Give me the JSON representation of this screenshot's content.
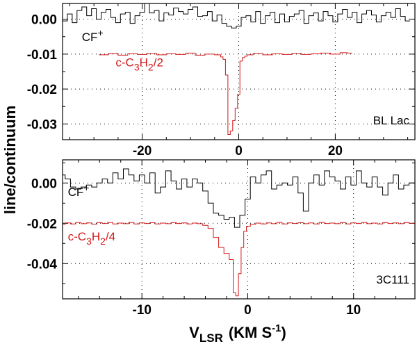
{
  "chart_data": [
    {
      "type": "line",
      "panel": "top",
      "source_label": "BL Lac",
      "xlim": [
        -36.5,
        36.5
      ],
      "ylim": [
        -0.0345,
        0.0045
      ],
      "xticks": [
        -20,
        0,
        20
      ],
      "xtick_labels": [
        "-20",
        "0",
        "20"
      ],
      "yticks": [
        0.0,
        -0.01,
        -0.02,
        -0.03
      ],
      "ytick_labels": [
        "0.00",
        "-0.01",
        "-0.02",
        "-0.03"
      ],
      "grid": true,
      "series": [
        {
          "name": "CF",
          "name_sup": "+",
          "color": "#000000",
          "points": [
            [
              -36,
              -0.0005
            ],
            [
              -35,
              0.0015
            ],
            [
              -34,
              -0.001
            ],
            [
              -33,
              0.0025
            ],
            [
              -32,
              0.0035
            ],
            [
              -31,
              0.001
            ],
            [
              -30,
              0.003
            ],
            [
              -29,
              0.0
            ],
            [
              -28,
              0.002
            ],
            [
              -27,
              0.0028
            ],
            [
              -26,
              0.0005
            ],
            [
              -25,
              -0.001
            ],
            [
              -24,
              0.0015
            ],
            [
              -23,
              0.002
            ],
            [
              -22,
              -0.0012
            ],
            [
              -21,
              0.001
            ],
            [
              -20,
              0.002
            ],
            [
              -19,
              0.0045
            ],
            [
              -18,
              0.0018
            ],
            [
              -17,
              0.0025
            ],
            [
              -16,
              -0.0005
            ],
            [
              -15,
              0.0018
            ],
            [
              -14,
              0.0012
            ],
            [
              -13,
              0.0032
            ],
            [
              -12,
              0.0022
            ],
            [
              -11,
              0.0015
            ],
            [
              -10,
              0.0028
            ],
            [
              -9,
              0.0035
            ],
            [
              -8,
              0.0008
            ],
            [
              -7,
              0.001
            ],
            [
              -6,
              0.0022
            ],
            [
              -5,
              -0.0005
            ],
            [
              -4,
              0.0012
            ],
            [
              -3,
              -0.0012
            ],
            [
              -2,
              -0.002
            ],
            [
              -1,
              -0.0025
            ],
            [
              0,
              -0.002
            ],
            [
              1,
              0.0005
            ],
            [
              2,
              0.001
            ],
            [
              3,
              -0.0008
            ],
            [
              4,
              0.0022
            ],
            [
              5,
              -0.0012
            ],
            [
              6,
              0.001
            ],
            [
              7,
              0.002
            ],
            [
              8,
              -0.001
            ],
            [
              9,
              0.0015
            ],
            [
              10,
              -0.0008
            ],
            [
              11,
              0.0008
            ],
            [
              12,
              0.0015
            ],
            [
              13,
              0.0025
            ],
            [
              14,
              -0.0012
            ],
            [
              15,
              0.001
            ],
            [
              16,
              0.0018
            ],
            [
              17,
              -0.0005
            ],
            [
              18,
              0.0022
            ],
            [
              19,
              0.001
            ],
            [
              20,
              -0.0008
            ],
            [
              21,
              0.0015
            ],
            [
              22,
              0.0028
            ],
            [
              23,
              0.0005
            ],
            [
              24,
              0.002
            ],
            [
              25,
              -0.001
            ],
            [
              26,
              0.0015
            ],
            [
              27,
              0.0025
            ],
            [
              28,
              0.0012
            ],
            [
              29,
              -0.0008
            ],
            [
              30,
              0.001
            ],
            [
              31,
              0.002
            ],
            [
              32,
              0.0005
            ],
            [
              33,
              0.003
            ],
            [
              34,
              0.0008
            ],
            [
              35,
              -0.0005
            ]
          ]
        },
        {
          "name": "c-C",
          "name_tail": "/2",
          "color": "#d11a1a",
          "points": [
            [
              -28,
              -0.0102
            ],
            [
              -26,
              -0.0098
            ],
            [
              -24,
              -0.0103
            ],
            [
              -22,
              -0.0099
            ],
            [
              -20,
              -0.0101
            ],
            [
              -18,
              -0.0098
            ],
            [
              -16,
              -0.0102
            ],
            [
              -14,
              -0.0099
            ],
            [
              -12,
              -0.0101
            ],
            [
              -10,
              -0.0097
            ],
            [
              -8,
              -0.0103
            ],
            [
              -6,
              -0.01
            ],
            [
              -4,
              -0.0102
            ],
            [
              -3.5,
              -0.0108
            ],
            [
              -3,
              -0.0115
            ],
            [
              -2.5,
              -0.016
            ],
            [
              -2,
              -0.033
            ],
            [
              -1.5,
              -0.032
            ],
            [
              -1,
              -0.029
            ],
            [
              -0.5,
              -0.0255
            ],
            [
              0,
              -0.0215
            ],
            [
              0.5,
              -0.012
            ],
            [
              1,
              -0.011
            ],
            [
              1.5,
              -0.0106
            ],
            [
              2,
              -0.0102
            ],
            [
              4,
              -0.0098
            ],
            [
              6,
              -0.0102
            ],
            [
              8,
              -0.0099
            ],
            [
              10,
              -0.0101
            ],
            [
              12,
              -0.0098
            ],
            [
              14,
              -0.0101
            ],
            [
              16,
              -0.0099
            ],
            [
              18,
              -0.0097
            ],
            [
              20,
              -0.01
            ],
            [
              22,
              -0.0096
            ],
            [
              23,
              -0.0097
            ]
          ]
        }
      ],
      "labels": [
        {
          "text": "CF",
          "sup": "+",
          "color": "#000000",
          "at": [
            -32.5,
            -0.0062
          ]
        },
        {
          "text": "c-C",
          "sub1": "3",
          "mid": "H",
          "sub2": "2",
          "tail": "/2",
          "color": "#d11a1a",
          "at": [
            -25.5,
            -0.0135
          ]
        }
      ]
    },
    {
      "type": "line",
      "panel": "bottom",
      "source_label": "3C111",
      "xlim": [
        -17.5,
        15.8
      ],
      "ylim": [
        -0.0575,
        0.0115
      ],
      "xticks": [
        -10,
        0,
        10
      ],
      "xtick_labels": [
        "-10",
        "0",
        "10"
      ],
      "yticks": [
        0.0,
        -0.02,
        -0.04
      ],
      "ytick_labels": [
        "0.00",
        "-0.02",
        "-0.04"
      ],
      "grid": true,
      "series": [
        {
          "name": "CF",
          "name_sup": "+",
          "color": "#000000",
          "points": [
            [
              -17.5,
              0.004
            ],
            [
              -17,
              0.002
            ],
            [
              -16.5,
              -0.002
            ],
            [
              -16,
              -0.003
            ],
            [
              -15.5,
              -0.002
            ],
            [
              -15,
              -0.001
            ],
            [
              -14.5,
              -0.002
            ],
            [
              -14,
              0.0
            ],
            [
              -13.5,
              0.002
            ],
            [
              -13,
              0.0
            ],
            [
              -12.5,
              0.005
            ],
            [
              -12,
              0.002
            ],
            [
              -11.5,
              0.007
            ],
            [
              -11,
              0.004
            ],
            [
              -10.5,
              0.001
            ],
            [
              -10,
              0.004
            ],
            [
              -9.5,
              0.0
            ],
            [
              -9,
              0.005
            ],
            [
              -8.5,
              -0.005
            ],
            [
              -8,
              -0.002
            ],
            [
              -7.5,
              0.006
            ],
            [
              -7,
              0.001
            ],
            [
              -6.5,
              -0.003
            ],
            [
              -6,
              0.002
            ],
            [
              -5.5,
              -0.002
            ],
            [
              -5,
              0.002
            ],
            [
              -4.5,
              0.0
            ],
            [
              -4,
              -0.004
            ],
            [
              -3.5,
              -0.01
            ],
            [
              -3,
              -0.015
            ],
            [
              -2.5,
              -0.016
            ],
            [
              -2,
              -0.018
            ],
            [
              -1.5,
              -0.017
            ],
            [
              -1,
              -0.022
            ],
            [
              -0.5,
              -0.016
            ],
            [
              0,
              -0.008
            ],
            [
              0.5,
              0.003
            ],
            [
              1,
              0.0
            ],
            [
              1.5,
              0.004
            ],
            [
              2,
              0.006
            ],
            [
              2.5,
              -0.003
            ],
            [
              3,
              -0.001
            ],
            [
              3.5,
              0.0
            ],
            [
              4,
              -0.001
            ],
            [
              4.5,
              0.003
            ],
            [
              5,
              -0.005
            ],
            [
              5.5,
              -0.014
            ],
            [
              6,
              0.0
            ],
            [
              6.5,
              0.004
            ],
            [
              7,
              -0.001
            ],
            [
              7.5,
              0.006
            ],
            [
              8,
              0.003
            ],
            [
              8.5,
              0.001
            ],
            [
              9,
              -0.003
            ],
            [
              9.5,
              0.003
            ],
            [
              10,
              -0.001
            ],
            [
              10.5,
              0.006
            ],
            [
              11,
              0.0
            ],
            [
              11.5,
              -0.002
            ],
            [
              12,
              0.003
            ],
            [
              12.5,
              -0.002
            ],
            [
              13,
              -0.006
            ],
            [
              13.5,
              0.0
            ],
            [
              14,
              0.004
            ],
            [
              14.5,
              -0.003
            ],
            [
              15,
              -0.001
            ],
            [
              15.5,
              0.0
            ]
          ]
        },
        {
          "name": "c-C",
          "name_tail": "/4",
          "color": "#d11a1a",
          "points": [
            [
              -17.5,
              -0.0205
            ],
            [
              -17,
              -0.0198
            ],
            [
              -16.5,
              -0.0203
            ],
            [
              -16,
              -0.0196
            ],
            [
              -15.5,
              -0.0202
            ],
            [
              -15,
              -0.0198
            ],
            [
              -14.5,
              -0.0204
            ],
            [
              -14,
              -0.0197
            ],
            [
              -13.5,
              -0.0201
            ],
            [
              -13,
              -0.0196
            ],
            [
              -12.5,
              -0.0203
            ],
            [
              -12,
              -0.0199
            ],
            [
              -11.5,
              -0.0202
            ],
            [
              -11,
              -0.0196
            ],
            [
              -10.5,
              -0.0203
            ],
            [
              -10,
              -0.0198
            ],
            [
              -9.5,
              -0.0201
            ],
            [
              -9,
              -0.0197
            ],
            [
              -8.5,
              -0.0203
            ],
            [
              -8,
              -0.0199
            ],
            [
              -7.5,
              -0.0202
            ],
            [
              -7,
              -0.0197
            ],
            [
              -6.5,
              -0.0201
            ],
            [
              -6,
              -0.0198
            ],
            [
              -5.5,
              -0.0203
            ],
            [
              -5,
              -0.0199
            ],
            [
              -4.5,
              -0.0202
            ],
            [
              -4,
              -0.021
            ],
            [
              -3.5,
              -0.0225
            ],
            [
              -3,
              -0.027
            ],
            [
              -2.5,
              -0.032
            ],
            [
              -2,
              -0.035
            ],
            [
              -1.5,
              -0.038
            ],
            [
              -1.25,
              -0.0545
            ],
            [
              -1,
              -0.056
            ],
            [
              -0.75,
              -0.045
            ],
            [
              -0.5,
              -0.032
            ],
            [
              -0.25,
              -0.024
            ],
            [
              0,
              -0.0215
            ],
            [
              0.5,
              -0.0205
            ],
            [
              1,
              -0.0199
            ],
            [
              1.5,
              -0.0203
            ],
            [
              2,
              -0.0198
            ],
            [
              2.5,
              -0.0202
            ],
            [
              3,
              -0.0196
            ],
            [
              3.5,
              -0.0203
            ],
            [
              4,
              -0.0198
            ],
            [
              4.5,
              -0.0201
            ],
            [
              5,
              -0.0197
            ],
            [
              5.5,
              -0.0202
            ],
            [
              6,
              -0.0198
            ],
            [
              6.5,
              -0.0203
            ],
            [
              7,
              -0.0196
            ],
            [
              7.5,
              -0.0201
            ],
            [
              8,
              -0.0199
            ],
            [
              8.5,
              -0.0202
            ],
            [
              9,
              -0.0197
            ],
            [
              9.5,
              -0.0203
            ],
            [
              10,
              -0.0198
            ],
            [
              10.5,
              -0.0201
            ],
            [
              11,
              -0.0196
            ],
            [
              11.5,
              -0.0202
            ],
            [
              12,
              -0.0199
            ],
            [
              12.5,
              -0.0203
            ],
            [
              13,
              -0.0197
            ],
            [
              13.5,
              -0.0201
            ],
            [
              14,
              -0.0198
            ],
            [
              14.5,
              -0.0202
            ],
            [
              15,
              -0.0197
            ],
            [
              15.5,
              -0.02
            ]
          ]
        }
      ],
      "labels": [
        {
          "text": "CF",
          "sup": "+",
          "color": "#000000",
          "at": [
            -17.0,
            -0.0065
          ]
        },
        {
          "text": "c-C",
          "sub1": "3",
          "mid": "H",
          "sub2": "2",
          "tail": "/4",
          "color": "#d11a1a",
          "at": [
            -17.0,
            -0.0285
          ]
        }
      ]
    }
  ],
  "shared_ylabel": "line/continuum",
  "shared_xlabel_main": "V",
  "shared_xlabel_sub": "LSR",
  "shared_xlabel_units": "(KM S",
  "shared_xlabel_sup": "-1",
  "shared_xlabel_close": ")",
  "colors": {
    "cf": "#000000",
    "ccch": "#d11a1a",
    "grid": "#000000"
  }
}
